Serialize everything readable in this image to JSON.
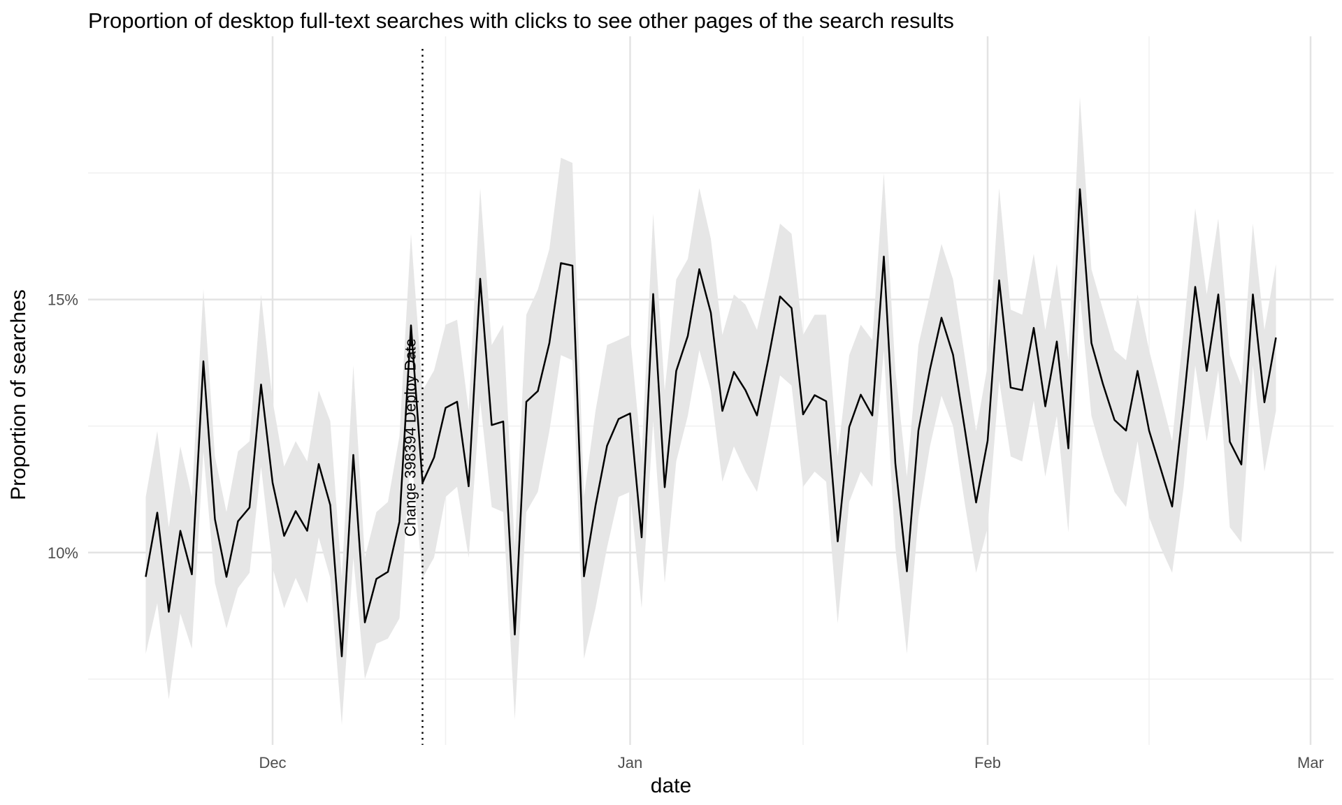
{
  "chart_data": {
    "type": "line",
    "title": "Proportion of desktop full-text searches with clicks to see other pages of the search results",
    "xlabel": "date",
    "ylabel": "Proportion of searches",
    "x_start": "2016-11-20",
    "x_end": "2017-02-27",
    "xlim": [
      "2016-11-15",
      "2017-03-03"
    ],
    "ylim": [
      0.062,
      0.202
    ],
    "x_ticks": [
      {
        "date": "2016-12-01",
        "label": "Dec"
      },
      {
        "date": "2017-01-01",
        "label": "Jan"
      },
      {
        "date": "2017-02-01",
        "label": "Feb"
      },
      {
        "date": "2017-03-01",
        "label": "Mar"
      }
    ],
    "x_minor_ticks": [
      "2016-12-16",
      "2017-01-16",
      "2017-02-15"
    ],
    "y_ticks": [
      {
        "value": 0.1,
        "label": "10%"
      },
      {
        "value": 0.15,
        "label": "15%"
      }
    ],
    "y_minor_ticks": [
      0.075,
      0.125,
      0.175
    ],
    "grid": true,
    "line_color": "#000000",
    "band_color": "#e6e6e6",
    "series": [
      {
        "values": [
          0.0952,
          0.1079,
          0.0883,
          0.1043,
          0.0957,
          0.1378,
          0.1066,
          0.0952,
          0.1062,
          0.1089,
          0.1332,
          0.1138,
          0.1033,
          0.1082,
          0.1043,
          0.1175,
          0.1094,
          0.0795,
          0.1193,
          0.0862,
          0.0948,
          0.0962,
          0.1061,
          0.1449,
          0.1138,
          0.1188,
          0.1286,
          0.1298,
          0.1131,
          0.1541,
          0.1252,
          0.1259,
          0.0838,
          0.1298,
          0.1319,
          0.1414,
          0.1572,
          0.1567,
          0.0953,
          0.1093,
          0.1211,
          0.1264,
          0.1275,
          0.103,
          0.1511,
          0.1129,
          0.1359,
          0.1428,
          0.156,
          0.1474,
          0.128,
          0.1357,
          0.1321,
          0.1271,
          0.1384,
          0.1506,
          0.1483,
          0.1273,
          0.1311,
          0.1299,
          0.1022,
          0.1248,
          0.1312,
          0.1271,
          0.1585,
          0.1176,
          0.0963,
          0.1241,
          0.1362,
          0.1464,
          0.1391,
          0.1247,
          0.1099,
          0.1221,
          0.1538,
          0.1326,
          0.1321,
          0.1444,
          0.1289,
          0.1417,
          0.1206,
          0.1718,
          0.1414,
          0.1333,
          0.1262,
          0.1241,
          0.1359,
          0.1241,
          0.1166,
          0.1091,
          0.1296,
          0.1525,
          0.1359,
          0.151,
          0.1219,
          0.1174,
          0.151,
          0.1297,
          0.1425
        ],
        "lower": [
          0.08,
          0.09,
          0.071,
          0.088,
          0.081,
          0.12,
          0.094,
          0.085,
          0.093,
          0.096,
          0.117,
          0.097,
          0.089,
          0.095,
          0.09,
          0.103,
          0.095,
          0.066,
          0.099,
          0.075,
          0.082,
          0.083,
          0.087,
          0.12,
          0.095,
          0.099,
          0.111,
          0.113,
          0.099,
          0.13,
          0.109,
          0.108,
          0.067,
          0.108,
          0.112,
          0.124,
          0.139,
          0.138,
          0.079,
          0.089,
          0.101,
          0.111,
          0.112,
          0.089,
          0.126,
          0.094,
          0.118,
          0.127,
          0.14,
          0.132,
          0.114,
          0.121,
          0.116,
          0.112,
          0.123,
          0.135,
          0.133,
          0.113,
          0.116,
          0.114,
          0.086,
          0.11,
          0.116,
          0.113,
          0.14,
          0.101,
          0.08,
          0.107,
          0.121,
          0.131,
          0.125,
          0.11,
          0.096,
          0.105,
          0.134,
          0.119,
          0.118,
          0.13,
          0.115,
          0.127,
          0.104,
          0.151,
          0.127,
          0.119,
          0.112,
          0.109,
          0.122,
          0.107,
          0.101,
          0.096,
          0.113,
          0.137,
          0.122,
          0.136,
          0.105,
          0.102,
          0.137,
          0.116,
          0.128
        ],
        "upper": [
          0.111,
          0.124,
          0.105,
          0.121,
          0.111,
          0.152,
          0.119,
          0.108,
          0.12,
          0.122,
          0.151,
          0.13,
          0.117,
          0.122,
          0.118,
          0.132,
          0.126,
          0.095,
          0.137,
          0.099,
          0.108,
          0.11,
          0.123,
          0.163,
          0.132,
          0.136,
          0.145,
          0.146,
          0.128,
          0.172,
          0.141,
          0.145,
          0.101,
          0.147,
          0.152,
          0.16,
          0.178,
          0.177,
          0.111,
          0.128,
          0.141,
          0.142,
          0.143,
          0.119,
          0.167,
          0.132,
          0.154,
          0.158,
          0.172,
          0.162,
          0.143,
          0.151,
          0.149,
          0.144,
          0.154,
          0.165,
          0.163,
          0.143,
          0.147,
          0.147,
          0.119,
          0.139,
          0.145,
          0.142,
          0.175,
          0.136,
          0.115,
          0.141,
          0.151,
          0.161,
          0.154,
          0.139,
          0.124,
          0.137,
          0.172,
          0.148,
          0.147,
          0.159,
          0.144,
          0.157,
          0.138,
          0.19,
          0.156,
          0.148,
          0.14,
          0.138,
          0.151,
          0.14,
          0.131,
          0.122,
          0.144,
          0.168,
          0.151,
          0.166,
          0.139,
          0.133,
          0.165,
          0.144,
          0.157
        ]
      }
    ],
    "annotations": [
      {
        "type": "vline",
        "date": "2016-12-14",
        "style": "dotted",
        "label": "Change 398394 Deploy Date"
      }
    ]
  }
}
